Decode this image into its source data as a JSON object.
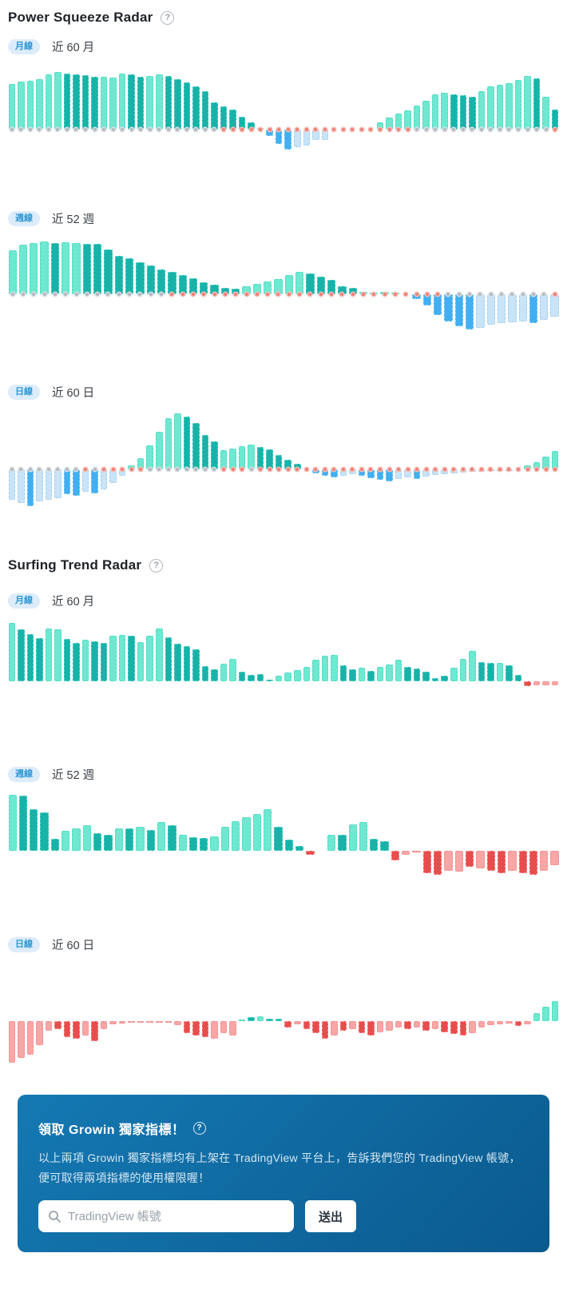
{
  "power_squeeze": {
    "title": "Power Squeeze Radar",
    "help_icon": "?"
  },
  "surfing_trend": {
    "title": "Surfing Trend Radar",
    "help_icon": "?"
  },
  "palette": {
    "g1": {
      "fill": "#6ee8d1",
      "border": "#4ed9bf"
    },
    "g2": {
      "fill": "#17b3a8",
      "border": "#5ed3ca"
    },
    "b1": {
      "fill": "#c9e4f8",
      "border": "#9fcdf0"
    },
    "b2": {
      "fill": "#41aff1",
      "border": "#8ed2fa"
    },
    "r1": {
      "fill": "#f8a6a6",
      "border": "#f18c8c"
    },
    "r2": {
      "fill": "#e84d4d",
      "border": "#f49999"
    }
  },
  "dots": {
    "threshold": 30,
    "normal": "#b4bac0",
    "normal_ring": "#dcdfe3",
    "signal": "#ef8177",
    "signal_ring": "#f8beb8"
  },
  "chart_data": [
    {
      "type": "bar",
      "title": "Power Squeeze Radar 月線",
      "period_badge": "月線",
      "period_label": "近 60 月",
      "pos": 74,
      "neg": 28,
      "dots": true,
      "values": [
        57,
        60,
        61,
        63,
        69,
        72,
        70,
        69,
        68,
        66,
        66,
        65,
        70,
        69,
        66,
        67,
        69,
        67,
        63,
        59,
        54,
        48,
        34,
        29,
        25,
        16,
        9,
        2,
        -8,
        -18,
        -25,
        -22,
        -20,
        -13,
        -13,
        0,
        0,
        0,
        0,
        0,
        9,
        15,
        20,
        24,
        30,
        36,
        44,
        46,
        44,
        43,
        41,
        48,
        54,
        56,
        58,
        62,
        67,
        64,
        41,
        25
      ],
      "colors": [
        "g1",
        "g1",
        "g1",
        "g1",
        "g1",
        "g1",
        "g2",
        "g2",
        "g2",
        "g2",
        "g1",
        "g1",
        "g1",
        "g2",
        "g2",
        "g1",
        "g1",
        "g2",
        "g2",
        "g2",
        "g2",
        "g2",
        "g2",
        "g2",
        "g2",
        "g2",
        "g2",
        "g2",
        "b2",
        "b2",
        "b2",
        "b1",
        "b1",
        "b1",
        "b1",
        "g1",
        "g1",
        "g1",
        "g1",
        "g1",
        "g1",
        "g1",
        "g1",
        "g1",
        "g1",
        "g1",
        "g1",
        "g1",
        "g2",
        "g2",
        "g2",
        "g1",
        "g1",
        "g1",
        "g1",
        "g1",
        "g1",
        "g2",
        "g1",
        "g2"
      ]
    },
    {
      "type": "bar",
      "title": "Power Squeeze Radar 週線",
      "period_badge": "週線",
      "period_label": "近 52 週",
      "pos": 68,
      "neg": 46,
      "dots": true,
      "values": [
        55,
        62,
        64,
        66,
        64,
        65,
        64,
        63,
        63,
        56,
        48,
        45,
        40,
        36,
        31,
        28,
        24,
        20,
        15,
        12,
        8,
        7,
        10,
        13,
        16,
        19,
        24,
        28,
        26,
        22,
        18,
        10,
        8,
        3,
        2,
        3,
        2,
        0,
        -6,
        -14,
        -26,
        -34,
        -40,
        -44,
        -42,
        -38,
        -36,
        -35,
        -34,
        -36,
        -32,
        -28
      ],
      "colors": [
        "g1",
        "g1",
        "g1",
        "g1",
        "g2",
        "g1",
        "g1",
        "g2",
        "g2",
        "g2",
        "g2",
        "g2",
        "g2",
        "g2",
        "g2",
        "g2",
        "g2",
        "g2",
        "g2",
        "g2",
        "g2",
        "g2",
        "g1",
        "g1",
        "g1",
        "g1",
        "g1",
        "g1",
        "g2",
        "g2",
        "g2",
        "g2",
        "g2",
        "g1",
        "g1",
        "g1",
        "g1",
        "g1",
        "b2",
        "b2",
        "b2",
        "b2",
        "b2",
        "b2",
        "b1",
        "b1",
        "b1",
        "b1",
        "b1",
        "b2",
        "b1",
        "b1"
      ]
    },
    {
      "type": "bar",
      "title": "Power Squeeze Radar 日線",
      "period_badge": "日線",
      "period_label": "近 60 日",
      "pos": 72,
      "neg": 48,
      "dots": true,
      "values": [
        -38,
        -42,
        -46,
        -40,
        -38,
        -36,
        -31,
        -33,
        -28,
        -30,
        -25,
        -17,
        -8,
        5,
        14,
        30,
        47,
        64,
        70,
        66,
        58,
        43,
        35,
        24,
        26,
        29,
        31,
        28,
        25,
        18,
        12,
        7,
        0,
        -5,
        -8,
        -10,
        -8,
        -6,
        -8,
        -11,
        -13,
        -15,
        -12,
        -10,
        -12,
        -9,
        -7,
        -6,
        -5,
        -4,
        -3,
        -3,
        -2,
        -2,
        -1,
        0,
        5,
        9,
        16,
        23
      ],
      "colors": [
        "b1",
        "b1",
        "b2",
        "b1",
        "b1",
        "b1",
        "b2",
        "b2",
        "b1",
        "b2",
        "b1",
        "b1",
        "b1",
        "g1",
        "g1",
        "g1",
        "g1",
        "g1",
        "g1",
        "g2",
        "g2",
        "g2",
        "g2",
        "g1",
        "g1",
        "g1",
        "g1",
        "g2",
        "g2",
        "g2",
        "g2",
        "g2",
        "g1",
        "b2",
        "b2",
        "b2",
        "b1",
        "b1",
        "b2",
        "b2",
        "b2",
        "b2",
        "b1",
        "b1",
        "b2",
        "b1",
        "b1",
        "b1",
        "b1",
        "b1",
        "b1",
        "b1",
        "b1",
        "b1",
        "b1",
        "g1",
        "g1",
        "g1",
        "g1",
        "g1"
      ]
    },
    {
      "type": "bar",
      "title": "Surfing Trend Radar 月線",
      "period_badge": "月線",
      "period_label": "近 60 月",
      "pos": 75,
      "neg": 8,
      "dots": false,
      "values": [
        73,
        65,
        59,
        54,
        66,
        65,
        53,
        48,
        52,
        50,
        48,
        57,
        58,
        57,
        49,
        57,
        66,
        55,
        47,
        44,
        40,
        19,
        15,
        22,
        28,
        12,
        8,
        9,
        2,
        7,
        11,
        14,
        18,
        27,
        32,
        33,
        20,
        15,
        17,
        13,
        18,
        21,
        27,
        18,
        16,
        12,
        4,
        7,
        17,
        28,
        38,
        24,
        23,
        23,
        20,
        8,
        -6,
        -5,
        -5,
        -5
      ],
      "colors": [
        "g1",
        "g2",
        "g2",
        "g2",
        "g1",
        "g1",
        "g2",
        "g2",
        "g1",
        "g2",
        "g2",
        "g1",
        "g1",
        "g2",
        "g1",
        "g1",
        "g1",
        "g2",
        "g2",
        "g2",
        "g2",
        "g2",
        "g2",
        "g1",
        "g1",
        "g2",
        "g2",
        "g2",
        "g2",
        "g1",
        "g1",
        "g1",
        "g1",
        "g1",
        "g1",
        "g1",
        "g2",
        "g2",
        "g1",
        "g2",
        "g1",
        "g1",
        "g1",
        "g2",
        "g2",
        "g2",
        "g2",
        "g2",
        "g1",
        "g1",
        "g1",
        "g2",
        "g2",
        "g1",
        "g2",
        "g2",
        "r2",
        "r1",
        "r1",
        "r1"
      ]
    },
    {
      "type": "bar",
      "title": "Surfing Trend Radar 週線",
      "period_badge": "週線",
      "period_label": "近 52 週",
      "pos": 72,
      "neg": 32,
      "dots": false,
      "values": [
        70,
        69,
        52,
        48,
        15,
        25,
        28,
        32,
        22,
        20,
        28,
        28,
        30,
        26,
        36,
        32,
        20,
        17,
        16,
        18,
        30,
        37,
        42,
        46,
        52,
        30,
        14,
        6,
        -5,
        0,
        20,
        20,
        33,
        36,
        15,
        12,
        -12,
        -5,
        -2,
        -28,
        -30,
        -25,
        -26,
        -20,
        -22,
        -25,
        -28,
        -25,
        -28,
        -30,
        -25,
        -18
      ],
      "colors": [
        "g1",
        "g2",
        "g2",
        "g2",
        "g2",
        "g1",
        "g1",
        "g1",
        "g2",
        "g2",
        "g1",
        "g2",
        "g1",
        "g2",
        "g1",
        "g2",
        "g1",
        "g2",
        "g2",
        "g1",
        "g1",
        "g1",
        "g1",
        "g1",
        "g1",
        "g2",
        "g2",
        "g2",
        "r2",
        "g1",
        "g1",
        "g2",
        "g1",
        "g1",
        "g2",
        "g2",
        "r2",
        "r1",
        "r1",
        "r2",
        "r2",
        "r1",
        "r1",
        "r2",
        "r1",
        "r2",
        "r2",
        "r1",
        "r2",
        "r2",
        "r1",
        "r1"
      ]
    },
    {
      "type": "bar",
      "title": "Surfing Trend Radar 日線",
      "period_badge": "日線",
      "period_label": "近 60 日",
      "pos": 27,
      "neg": 54,
      "dots": false,
      "values": [
        -52,
        -46,
        -42,
        -30,
        -12,
        -10,
        -20,
        -22,
        -18,
        -25,
        -10,
        -4,
        -3,
        -2,
        -1,
        -2,
        -1,
        -2,
        -5,
        -15,
        -18,
        -20,
        -22,
        -15,
        -18,
        2,
        5,
        6,
        3,
        3,
        -8,
        -4,
        -10,
        -15,
        -22,
        -18,
        -12,
        -10,
        -15,
        -18,
        -14,
        -12,
        -8,
        -10,
        -8,
        -12,
        -10,
        -14,
        -16,
        -18,
        -15,
        -8,
        -5,
        -4,
        -3,
        -6,
        -4,
        10,
        18,
        25
      ],
      "colors": [
        "r1",
        "r1",
        "r1",
        "r1",
        "r1",
        "r2",
        "r2",
        "r2",
        "r1",
        "r2",
        "r1",
        "r1",
        "r1",
        "r1",
        "r1",
        "r1",
        "r1",
        "r1",
        "r1",
        "r2",
        "r2",
        "r2",
        "r1",
        "r1",
        "r1",
        "g1",
        "g2",
        "g1",
        "g2",
        "g2",
        "r2",
        "r1",
        "r2",
        "r2",
        "r2",
        "r1",
        "r2",
        "r1",
        "r2",
        "r2",
        "r1",
        "r1",
        "r1",
        "r2",
        "r1",
        "r2",
        "r1",
        "r2",
        "r2",
        "r2",
        "r1",
        "r1",
        "r1",
        "r1",
        "r1",
        "r2",
        "r1",
        "g1",
        "g1",
        "g1"
      ]
    }
  ],
  "cta": {
    "title": "領取 Growin 獨家指標！",
    "help_icon": "?",
    "description": "以上兩項 Growin 獨家指標均有上架在 TradingView 平台上，告訴我們您的 TradingView 帳號，便可取得兩項指標的使用權限喔！",
    "input_placeholder": "TradingView 帳號",
    "submit_label": "送出"
  }
}
